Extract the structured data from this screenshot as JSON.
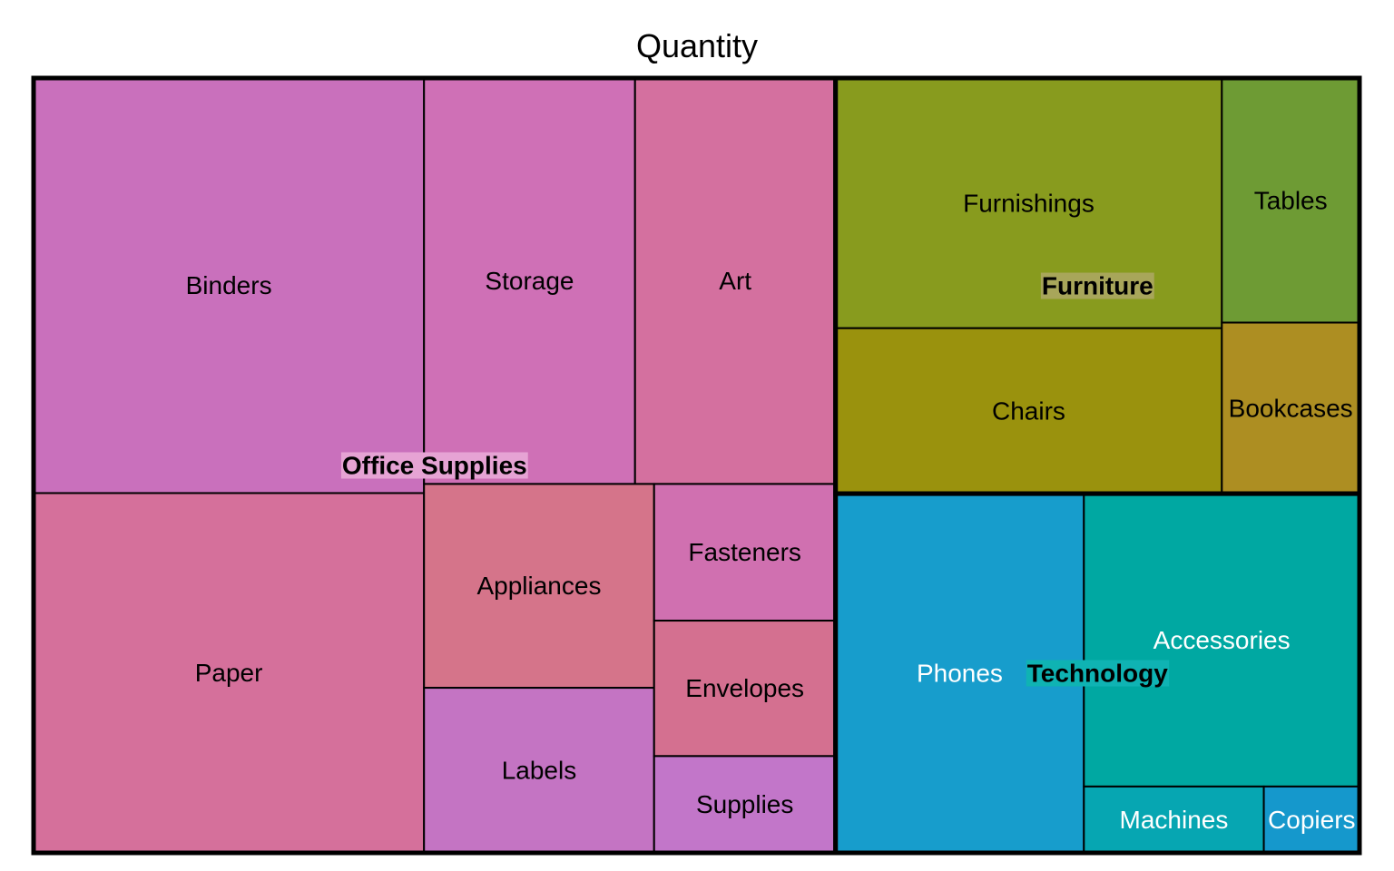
{
  "chart_data": {
    "type": "treemap",
    "title": "Quantity",
    "groups": [
      {
        "name": "Office Supplies",
        "color": "#d87ad0",
        "label_bg": "#e6a3d4",
        "children": [
          {
            "name": "Binders",
            "value": 5974,
            "color": "#c970bc"
          },
          {
            "name": "Paper",
            "value": 5178,
            "color": "#d5709b"
          },
          {
            "name": "Storage",
            "value": 3158,
            "color": "#cf70b6"
          },
          {
            "name": "Art",
            "value": 3000,
            "color": "#d4709f"
          },
          {
            "name": "Appliances",
            "value": 1729,
            "color": "#d5748a"
          },
          {
            "name": "Labels",
            "value": 1400,
            "color": "#c474c3"
          },
          {
            "name": "Fasteners",
            "value": 914,
            "color": "#d070b0"
          },
          {
            "name": "Envelopes",
            "value": 906,
            "color": "#d47090"
          },
          {
            "name": "Supplies",
            "value": 647,
            "color": "#c276c9"
          }
        ]
      },
      {
        "name": "Furniture",
        "color": "#8b9a1e",
        "label_bg": "#a8a65a",
        "children": [
          {
            "name": "Furnishings",
            "value": 3563,
            "color": "#889b1e"
          },
          {
            "name": "Chairs",
            "value": 2356,
            "color": "#9a920d"
          },
          {
            "name": "Tables",
            "value": 1241,
            "color": "#6e9b34"
          },
          {
            "name": "Bookcases",
            "value": 868,
            "color": "#ad8e22"
          }
        ]
      },
      {
        "name": "Technology",
        "color": "#10a9a6",
        "label_bg": "#0fb3b3",
        "children": [
          {
            "name": "Phones",
            "value": 3289,
            "color": "#179dcc"
          },
          {
            "name": "Accessories",
            "value": 2976,
            "color": "#00a8a2"
          },
          {
            "name": "Machines",
            "value": 440,
            "color": "#06a6b2"
          },
          {
            "name": "Copiers",
            "value": 234,
            "color": "#1598cc"
          }
        ]
      }
    ]
  }
}
